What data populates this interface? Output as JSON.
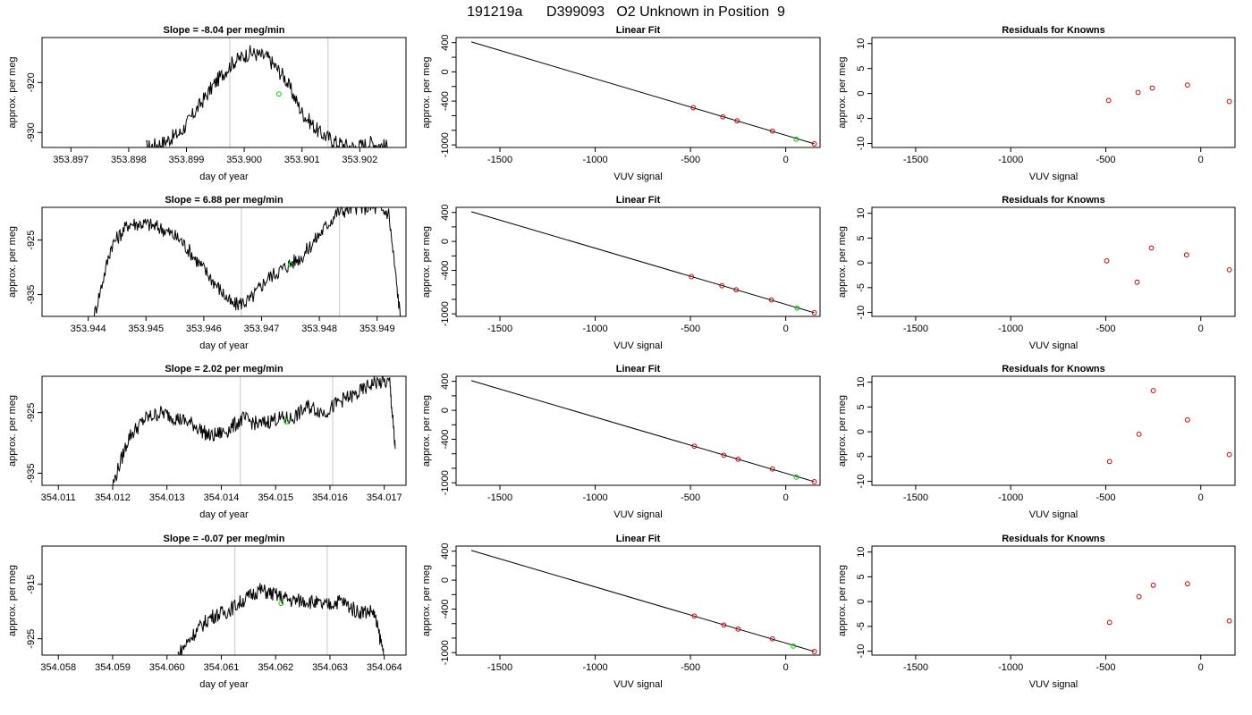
{
  "figure": {
    "title": "191219a      D399093   O2 Unknown in Position  9"
  },
  "chart_data": [
    {
      "type": "line",
      "panel": "time-series",
      "row": 1,
      "title": "Slope =  -8.04  per meg/min",
      "xlabel": "day of year",
      "ylabel": "approx. per meg",
      "xlim": [
        353.8965,
        353.9028
      ],
      "ylim": [
        -933,
        -911
      ],
      "xticks": [
        353.897,
        353.898,
        353.899,
        353.9,
        353.901,
        353.902
      ],
      "xtick_labels": [
        "353.897",
        "353.898",
        "353.899",
        "353.900",
        "353.901",
        "353.902"
      ],
      "yticks": [
        -920,
        -930
      ],
      "ytick_labels": [
        "-920",
        "-930"
      ],
      "vlines": [
        353.89975,
        353.90145
      ],
      "marker": {
        "x": 353.9006,
        "y": -922.3,
        "color": "#00cc00"
      },
      "series": [
        {
          "x": [
            353.8983,
            353.8986,
            353.8989,
            353.8992,
            353.8995,
            353.8998,
            353.9001,
            353.9004,
            353.9007,
            353.901,
            353.9013,
            353.9016,
            353.9019,
            353.9022,
            353.9025
          ],
          "y": [
            -933,
            -932,
            -930,
            -925,
            -920,
            -916,
            -914,
            -915,
            -919,
            -926,
            -930,
            -932,
            -933,
            -932,
            -933
          ]
        }
      ]
    },
    {
      "type": "line",
      "panel": "time-series",
      "row": 2,
      "title": "Slope =  6.88  per meg/min",
      "xlabel": "day of year",
      "ylabel": "approx. per meg",
      "xlim": [
        353.9432,
        353.9495
      ],
      "ylim": [
        -939,
        -919
      ],
      "xticks": [
        353.944,
        353.945,
        353.946,
        353.947,
        353.948,
        353.949
      ],
      "xtick_labels": [
        "353.944",
        "353.945",
        "353.946",
        "353.947",
        "353.948",
        "353.949"
      ],
      "yticks": [
        -925,
        -935
      ],
      "ytick_labels": [
        "-925",
        "-935"
      ],
      "vlines": [
        353.94665,
        353.94835
      ],
      "marker": {
        "x": 353.9475,
        "y": -929.5,
        "color": "#00cc00"
      },
      "series": [
        {
          "x": [
            353.9441,
            353.9444,
            353.9447,
            353.945,
            353.9453,
            353.9456,
            353.9459,
            353.9462,
            353.9465,
            353.9468,
            353.9471,
            353.9474,
            353.9477,
            353.948,
            353.9483,
            353.9486,
            353.9489,
            353.9492,
            353.9494
          ],
          "y": [
            -939,
            -926,
            -922,
            -922,
            -923,
            -925,
            -929,
            -933,
            -937,
            -936,
            -932,
            -930,
            -928,
            -924,
            -920,
            -919,
            -919,
            -920,
            -939
          ]
        }
      ]
    },
    {
      "type": "line",
      "panel": "time-series",
      "row": 3,
      "title": "Slope =  2.02  per meg/min",
      "xlabel": "day of year",
      "ylabel": "approx. per meg",
      "xlim": [
        354.0107,
        354.0174
      ],
      "ylim": [
        -937,
        -919
      ],
      "xticks": [
        354.011,
        354.012,
        354.013,
        354.014,
        354.015,
        354.016,
        354.017
      ],
      "xtick_labels": [
        "354.011",
        "354.012",
        "354.013",
        "354.014",
        "354.015",
        "354.016",
        "354.017"
      ],
      "yticks": [
        -925,
        -935
      ],
      "ytick_labels": [
        "-925",
        "-935"
      ],
      "vlines": [
        354.01435,
        354.01605
      ],
      "marker": {
        "x": 354.0152,
        "y": -926.5,
        "color": "#00cc00"
      },
      "series": [
        {
          "x": [
            354.012,
            354.0123,
            354.0126,
            354.0129,
            354.0132,
            354.0135,
            354.0138,
            354.0141,
            354.0144,
            354.0147,
            354.015,
            354.0153,
            354.0156,
            354.0159,
            354.0162,
            354.0165,
            354.0168,
            354.0171,
            354.0172
          ],
          "y": [
            -937,
            -929,
            -926,
            -925,
            -926,
            -927,
            -929,
            -928,
            -926,
            -927,
            -926,
            -926,
            -924,
            -925,
            -923,
            -922,
            -920,
            -920,
            -931
          ]
        }
      ]
    },
    {
      "type": "line",
      "panel": "time-series",
      "row": 4,
      "title": "Slope =  -0.07  per meg/min",
      "xlabel": "day of year",
      "ylabel": "approx. per meg",
      "xlim": [
        354.0577,
        354.0644
      ],
      "ylim": [
        -928,
        -908
      ],
      "xticks": [
        354.058,
        354.059,
        354.06,
        354.061,
        354.062,
        354.063,
        354.064
      ],
      "xtick_labels": [
        "354.058",
        "354.059",
        "354.060",
        "354.061",
        "354.062",
        "354.063",
        "354.064"
      ],
      "yticks": [
        -915,
        -925
      ],
      "ytick_labels": [
        "-915",
        "-925"
      ],
      "vlines": [
        354.06125,
        354.06295
      ],
      "marker": {
        "x": 354.0621,
        "y": -918.5,
        "color": "#00cc00"
      },
      "series": [
        {
          "x": [
            354.0602,
            354.0605,
            354.0608,
            354.0611,
            354.0614,
            354.0617,
            354.062,
            354.0623,
            354.0626,
            354.0629,
            354.0632,
            354.0635,
            354.0638,
            354.064
          ],
          "y": [
            -928,
            -924,
            -921,
            -920,
            -918,
            -916,
            -917,
            -918,
            -918,
            -919,
            -918,
            -920,
            -920,
            -928
          ]
        }
      ]
    },
    {
      "type": "scatter",
      "panel": "linear-fit",
      "row": 1,
      "title": "Linear Fit",
      "xlabel": "VUV signal",
      "ylabel": "approx. per meg",
      "xlim": [
        -1730,
        180
      ],
      "ylim": [
        -1035,
        470
      ],
      "xticks": [
        -1500,
        -1000,
        -500,
        0
      ],
      "xtick_labels": [
        "-1500",
        "-1000",
        "-500",
        "0"
      ],
      "yticks": [
        400,
        0,
        -400,
        -1000
      ],
      "ytick_labels": [
        "400",
        "0",
        "-400",
        "-1000"
      ],
      "fit_line": {
        "x": [
          -1650,
          150
        ],
        "y": [
          410,
          -985
        ]
      },
      "knowns": {
        "x": [
          -485,
          -330,
          -255,
          -70,
          150
        ],
        "y": [
          -490,
          -615,
          -670,
          -810,
          -985
        ],
        "color": "#cc0000"
      },
      "unknown": {
        "x": [
          55
        ],
        "y": [
          -922
        ],
        "color": "#00cc00"
      }
    },
    {
      "type": "scatter",
      "panel": "linear-fit",
      "row": 2,
      "title": "Linear Fit",
      "xlabel": "VUV signal",
      "ylabel": "approx. per meg",
      "xlim": [
        -1730,
        180
      ],
      "ylim": [
        -1035,
        470
      ],
      "xticks": [
        -1500,
        -1000,
        -500,
        0
      ],
      "xtick_labels": [
        "-1500",
        "-1000",
        "-500",
        "0"
      ],
      "yticks": [
        400,
        0,
        -400,
        -1000
      ],
      "ytick_labels": [
        "400",
        "0",
        "-400",
        "-1000"
      ],
      "fit_line": {
        "x": [
          -1650,
          150
        ],
        "y": [
          410,
          -985
        ]
      },
      "knowns": {
        "x": [
          -495,
          -335,
          -260,
          -75,
          150
        ],
        "y": [
          -487,
          -612,
          -668,
          -808,
          -985
        ],
        "color": "#cc0000"
      },
      "unknown": {
        "x": [
          60
        ],
        "y": [
          -920
        ],
        "color": "#00cc00"
      }
    },
    {
      "type": "scatter",
      "panel": "linear-fit",
      "row": 3,
      "title": "Linear Fit",
      "xlabel": "VUV signal",
      "ylabel": "approx. per meg",
      "xlim": [
        -1730,
        180
      ],
      "ylim": [
        -1035,
        470
      ],
      "xticks": [
        -1500,
        -1000,
        -500,
        0
      ],
      "xtick_labels": [
        "-1500",
        "-1000",
        "-500",
        "0"
      ],
      "yticks": [
        400,
        0,
        -400,
        -1000
      ],
      "ytick_labels": [
        "400",
        "0",
        "-400",
        "-1000"
      ],
      "fit_line": {
        "x": [
          -1650,
          150
        ],
        "y": [
          410,
          -985
        ]
      },
      "knowns": {
        "x": [
          -480,
          -325,
          -250,
          -70,
          150
        ],
        "y": [
          -495,
          -620,
          -675,
          -810,
          -985
        ],
        "color": "#cc0000"
      },
      "unknown": {
        "x": [
          55
        ],
        "y": [
          -922
        ],
        "color": "#00cc00"
      }
    },
    {
      "type": "scatter",
      "panel": "linear-fit",
      "row": 4,
      "title": "Linear Fit",
      "xlabel": "VUV signal",
      "ylabel": "approx. per meg",
      "xlim": [
        -1730,
        180
      ],
      "ylim": [
        -1035,
        470
      ],
      "xticks": [
        -1500,
        -1000,
        -500,
        0
      ],
      "xtick_labels": [
        "-1500",
        "-1000",
        "-500",
        "0"
      ],
      "yticks": [
        400,
        0,
        -400,
        -1000
      ],
      "ytick_labels": [
        "400",
        "0",
        "-400",
        "-1000"
      ],
      "fit_line": {
        "x": [
          -1650,
          150
        ],
        "y": [
          410,
          -985
        ]
      },
      "knowns": {
        "x": [
          -480,
          -325,
          -250,
          -70,
          150
        ],
        "y": [
          -495,
          -620,
          -675,
          -810,
          -985
        ],
        "color": "#cc0000"
      },
      "unknown": {
        "x": [
          40
        ],
        "y": [
          -910
        ],
        "color": "#00cc00"
      }
    },
    {
      "type": "scatter",
      "panel": "residuals",
      "row": 1,
      "title": "Residuals for Knowns",
      "xlabel": "VUV signal",
      "ylabel": "approx. per meg",
      "xlim": [
        -1730,
        180
      ],
      "ylim": [
        -10.8,
        11.2
      ],
      "xticks": [
        -1500,
        -1000,
        -500,
        0
      ],
      "xtick_labels": [
        "-1500",
        "-1000",
        "-500",
        "0"
      ],
      "yticks": [
        10,
        5,
        0,
        -5,
        -10
      ],
      "ytick_labels": [
        "10",
        "5",
        "0",
        "-5",
        "-10"
      ],
      "points": {
        "x": [
          -485,
          -330,
          -255,
          -70,
          150
        ],
        "y": [
          -1.4,
          0.2,
          1.1,
          1.7,
          -1.6
        ],
        "color": "#cc0000"
      }
    },
    {
      "type": "scatter",
      "panel": "residuals",
      "row": 2,
      "title": "Residuals for Knowns",
      "xlabel": "VUV signal",
      "ylabel": "approx. per meg",
      "xlim": [
        -1730,
        180
      ],
      "ylim": [
        -10.8,
        11.2
      ],
      "xticks": [
        -1500,
        -1000,
        -500,
        0
      ],
      "xtick_labels": [
        "-1500",
        "-1000",
        "-500",
        "0"
      ],
      "yticks": [
        10,
        5,
        0,
        -5,
        -10
      ],
      "ytick_labels": [
        "10",
        "5",
        "0",
        "-5",
        "-10"
      ],
      "points": {
        "x": [
          -495,
          -335,
          -260,
          -75,
          150
        ],
        "y": [
          0.4,
          -3.9,
          3.0,
          1.6,
          -1.4
        ],
        "color": "#cc0000"
      }
    },
    {
      "type": "scatter",
      "panel": "residuals",
      "row": 3,
      "title": "Residuals for Knowns",
      "xlabel": "VUV signal",
      "ylabel": "approx. per meg",
      "xlim": [
        -1730,
        180
      ],
      "ylim": [
        -10.8,
        11.2
      ],
      "xticks": [
        -1500,
        -1000,
        -500,
        0
      ],
      "xtick_labels": [
        "-1500",
        "-1000",
        "-500",
        "0"
      ],
      "yticks": [
        10,
        5,
        0,
        -5,
        -10
      ],
      "ytick_labels": [
        "10",
        "5",
        "0",
        "-5",
        "-10"
      ],
      "points": {
        "x": [
          -480,
          -325,
          -250,
          -70,
          150
        ],
        "y": [
          -6.0,
          -0.5,
          8.3,
          2.4,
          -4.6
        ],
        "color": "#cc0000"
      }
    },
    {
      "type": "scatter",
      "panel": "residuals",
      "row": 4,
      "title": "Residuals for Knowns",
      "xlabel": "VUV signal",
      "ylabel": "approx. per meg",
      "xlim": [
        -1730,
        180
      ],
      "ylim": [
        -10.8,
        11.2
      ],
      "xticks": [
        -1500,
        -1000,
        -500,
        0
      ],
      "xtick_labels": [
        "-1500",
        "-1000",
        "-500",
        "0"
      ],
      "yticks": [
        10,
        5,
        0,
        -5,
        -10
      ],
      "ytick_labels": [
        "10",
        "5",
        "0",
        "-5",
        "-10"
      ],
      "points": {
        "x": [
          -480,
          -325,
          -250,
          -70,
          150
        ],
        "y": [
          -4.2,
          1.0,
          3.3,
          3.6,
          -3.9
        ],
        "color": "#cc0000"
      }
    }
  ]
}
